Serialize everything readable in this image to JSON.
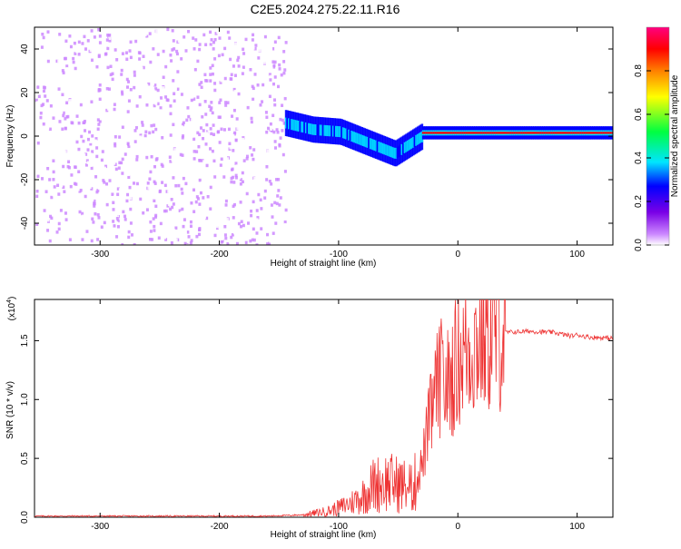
{
  "title": "C2E5.2024.275.22.11.R16",
  "chart_data": [
    {
      "type": "heatmap",
      "xlabel": "Height of straight line (km)",
      "ylabel": "Frequency (Hz)",
      "xlim": [
        -355,
        130
      ],
      "ylim": [
        -50,
        50
      ],
      "x_ticks": [
        -300,
        -200,
        -100,
        0,
        100
      ],
      "y_ticks": [
        -40,
        -20,
        0,
        20,
        40
      ],
      "colorbar": {
        "label": "Normalized spectral amplitude",
        "range": [
          0,
          1
        ],
        "ticks": [
          0.0,
          0.2,
          0.4,
          0.6,
          0.8
        ],
        "colors": [
          "#ffffff",
          "#cc88ff",
          "#7a00e6",
          "#0000ff",
          "#00e5ff",
          "#00ff40",
          "#ffff00",
          "#ff8000",
          "#ff0000",
          "#ff0080"
        ]
      },
      "regions": [
        {
          "name": "noise",
          "x_range": [
            -355,
            -145
          ],
          "f_range": [
            -50,
            50
          ],
          "amplitude": 0.15
        },
        {
          "name": "signal_fragmented",
          "x_range": [
            -145,
            -30
          ],
          "center_freq_hz": [
            6,
            3,
            2,
            -3,
            -8,
            0
          ],
          "amplitude": 0.35
        },
        {
          "name": "signal_stable",
          "x_range": [
            -30,
            130
          ],
          "center_freq_hz": 1.5,
          "amplitude": 0.9
        }
      ]
    },
    {
      "type": "line",
      "xlabel": "Height of straight line (km)",
      "ylabel": "SNR (10 * v/v)",
      "y_exponent_label": "(x10",
      "y_exponent_sup": "4",
      "y_exponent_close": ")",
      "xlim": [
        -355,
        130
      ],
      "ylim": [
        0,
        1.85
      ],
      "x_ticks": [
        -300,
        -200,
        -100,
        0,
        100
      ],
      "y_ticks": [
        0.0,
        0.5,
        1.0,
        1.5
      ],
      "y_tick_labels": [
        "0.0",
        "0.5",
        "1.0",
        "1.5"
      ],
      "series": [
        {
          "color": "#ee3333",
          "x": [
            -355,
            -300,
            -250,
            -200,
            -160,
            -130,
            -110,
            -100,
            -90,
            -80,
            -70,
            -60,
            -50,
            -40,
            -35,
            -30,
            -25,
            -20,
            -15,
            -10,
            -5,
            0,
            10,
            20,
            30,
            40,
            60,
            80,
            95,
            100,
            110,
            130
          ],
          "y": [
            0.01,
            0.01,
            0.01,
            0.01,
            0.01,
            0.02,
            0.05,
            0.08,
            0.12,
            0.18,
            0.28,
            0.3,
            0.28,
            0.26,
            0.3,
            0.45,
            0.75,
            1.0,
            1.2,
            1.1,
            1.2,
            1.35,
            1.45,
            1.52,
            1.55,
            1.57,
            1.58,
            1.57,
            1.54,
            1.55,
            1.53,
            1.52
          ]
        }
      ]
    }
  ]
}
